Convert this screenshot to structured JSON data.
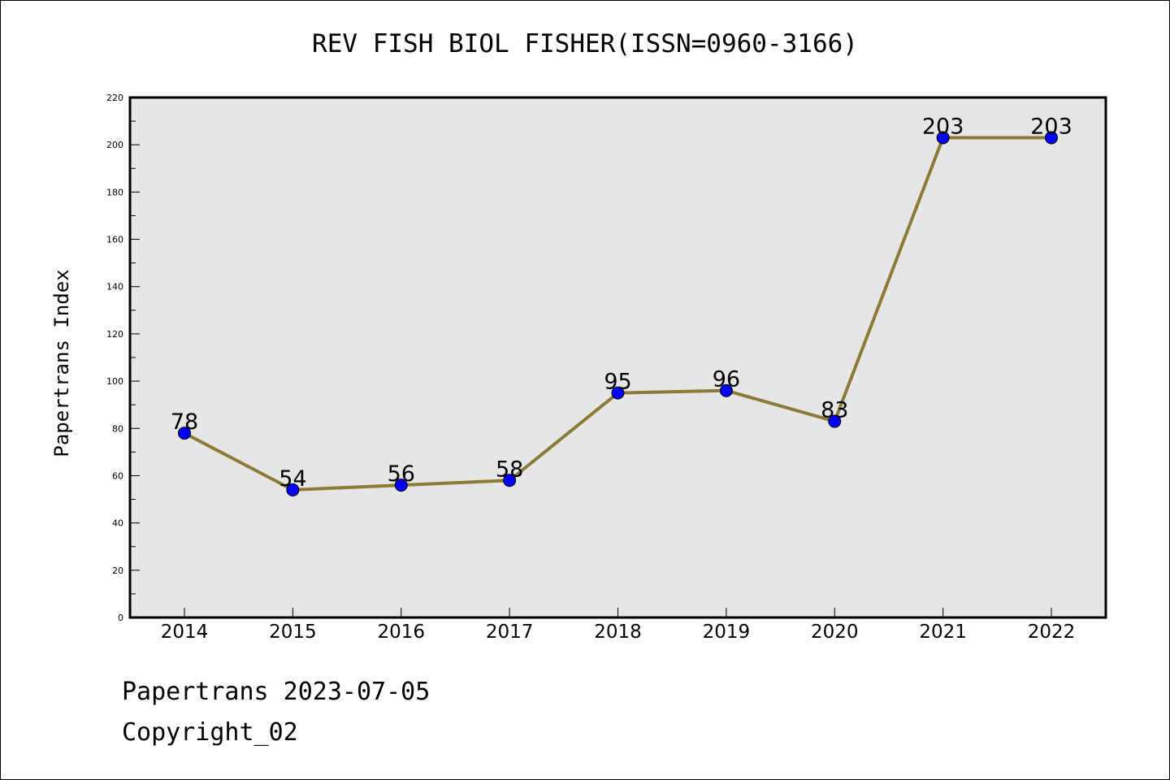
{
  "chart_data": {
    "type": "line",
    "title": "REV FISH BIOL FISHER(ISSN=0960-3166)",
    "ylabel": "Papertrans Index",
    "xlabel": "",
    "categories": [
      "2014",
      "2015",
      "2016",
      "2017",
      "2018",
      "2019",
      "2020",
      "2021",
      "2022"
    ],
    "series": [
      {
        "values": [
          78,
          54,
          56,
          58,
          95,
          96,
          83,
          203,
          203
        ]
      }
    ],
    "ylim": [
      0,
      220
    ],
    "yticks": [
      0,
      20,
      40,
      60,
      80,
      100,
      120,
      140,
      160,
      180,
      200,
      220
    ],
    "grid": false,
    "colors": {
      "line": "#8c7a35",
      "marker": "#0000ff",
      "plot_background": "#e6e6e6"
    }
  },
  "footer": {
    "line1": "Papertrans 2023-07-05",
    "line2": "Copyright_02"
  }
}
